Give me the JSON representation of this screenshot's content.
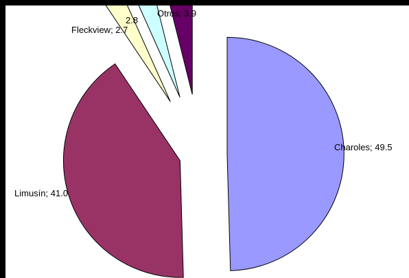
{
  "chart_data": {
    "type": "pie",
    "exploded": true,
    "slices": [
      {
        "label": "Charoles; 49.5",
        "name": "Charoles",
        "value": 49.5,
        "color": "#9999ff"
      },
      {
        "label": "Limusín; 41.0",
        "name": "Limusín",
        "value": 41.0,
        "color": "#993366"
      },
      {
        "label": "Fleckview; 2.7",
        "name": "Fleckview",
        "value": 2.7,
        "color": "#ffffcc"
      },
      {
        "label": "2.8",
        "name": "",
        "value": 2.8,
        "color": "#ccffff"
      },
      {
        "label": "Otros; 3.9",
        "name": "Otros",
        "value": 3.9,
        "color": "#660066"
      }
    ],
    "legend": "none",
    "title": ""
  }
}
